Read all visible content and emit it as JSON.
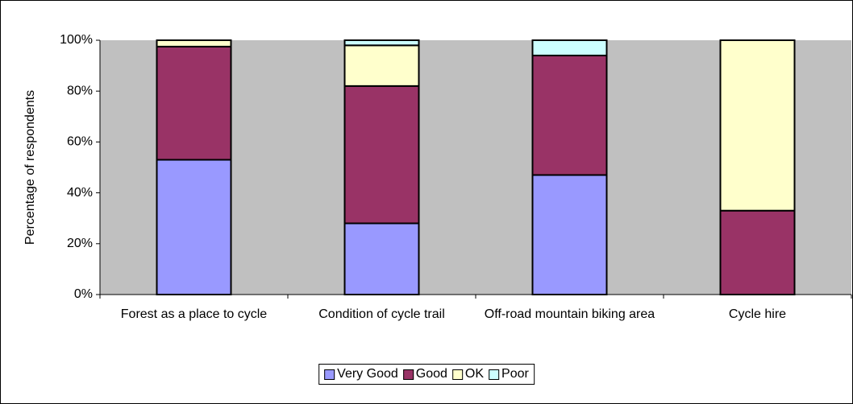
{
  "chart_data": {
    "type": "stacked_bar",
    "ylabel": "Percentage of respondents",
    "categories": [
      "Forest as a place to cycle",
      "Condition of cycle trail",
      "Off-road mountain biking area",
      "Cycle hire"
    ],
    "series": [
      {
        "name": "Very Good",
        "color": "#9999ff",
        "values": [
          53,
          28,
          47,
          0
        ]
      },
      {
        "name": "Good",
        "color": "#993366",
        "values": [
          44.5,
          54,
          47,
          33
        ]
      },
      {
        "name": "OK",
        "color": "#ffffcc",
        "values": [
          2.5,
          16,
          0,
          67
        ]
      },
      {
        "name": "Poor",
        "color": "#ccffff",
        "values": [
          0,
          2,
          6,
          0
        ]
      }
    ],
    "ylim": [
      0,
      100
    ],
    "yticks": [
      {
        "value": 0,
        "label": "0%"
      },
      {
        "value": 20,
        "label": "20%"
      },
      {
        "value": 40,
        "label": "40%"
      },
      {
        "value": 60,
        "label": "60%"
      },
      {
        "value": 80,
        "label": "80%"
      },
      {
        "value": 100,
        "label": "100%"
      }
    ],
    "plot_background": "#c0c0c0"
  }
}
